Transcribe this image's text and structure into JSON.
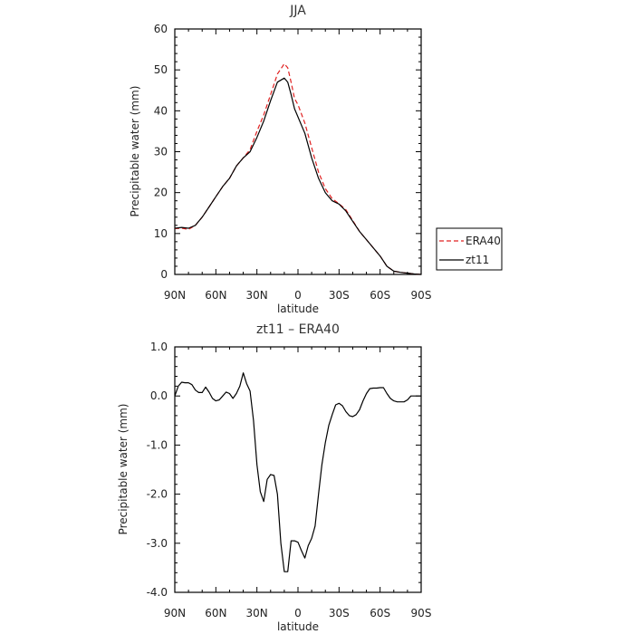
{
  "colors": {
    "era40": "#e02020",
    "zt11": "#000000",
    "axis": "#000000"
  },
  "chart_data": [
    {
      "type": "line",
      "title": "JJA",
      "xlabel": "latitude",
      "ylabel": "Precipitable water (mm)",
      "xlim": [
        90,
        -90
      ],
      "ylim": [
        0,
        60
      ],
      "xticks": [
        90,
        60,
        30,
        0,
        -30,
        -60,
        -90
      ],
      "xtick_labels": [
        "90N",
        "60N",
        "30N",
        "0",
        "30S",
        "60S",
        "90S"
      ],
      "yticks": [
        0,
        10,
        20,
        30,
        40,
        50,
        60
      ],
      "ytick_labels": [
        "0",
        "10",
        "20",
        "30",
        "40",
        "50",
        "60"
      ],
      "legend": {
        "placement": "right",
        "entries": [
          "ERA40",
          "zt11"
        ]
      },
      "series": [
        {
          "name": "ERA40",
          "style": "dashed",
          "x": [
            90,
            85,
            80,
            75,
            70,
            65,
            60,
            55,
            50,
            45,
            40,
            35,
            30,
            25,
            20,
            15,
            10,
            7.5,
            5,
            2.5,
            0,
            -5,
            -10,
            -15,
            -20,
            -25,
            -30,
            -35,
            -40,
            -45,
            -50,
            -55,
            -60,
            -65,
            -70,
            -75,
            -80,
            -85,
            -90
          ],
          "y": [
            11.2,
            11.3,
            11.0,
            12.0,
            14.0,
            16.5,
            19.0,
            21.5,
            23.5,
            26.5,
            28.5,
            30.5,
            35.0,
            39.0,
            44.0,
            49.0,
            51.5,
            50.5,
            47.0,
            43.0,
            41.5,
            37.0,
            31.0,
            25.0,
            21.0,
            18.5,
            17.3,
            15.8,
            13.2,
            10.5,
            8.5,
            6.5,
            4.5,
            2.0,
            0.8,
            0.5,
            0.3,
            0.1,
            0.0
          ]
        },
        {
          "name": "zt11",
          "style": "solid",
          "x": [
            90,
            85,
            80,
            75,
            70,
            65,
            60,
            55,
            50,
            45,
            40,
            35,
            30,
            25,
            20,
            15,
            10,
            7.5,
            5,
            2.5,
            0,
            -5,
            -10,
            -15,
            -20,
            -25,
            -30,
            -35,
            -40,
            -45,
            -50,
            -55,
            -60,
            -65,
            -70,
            -75,
            -80,
            -85,
            -90
          ],
          "y": [
            11.3,
            11.5,
            11.3,
            12.0,
            14.0,
            16.5,
            19.0,
            21.5,
            23.5,
            26.5,
            28.5,
            30.0,
            33.5,
            37.5,
            42.5,
            47.0,
            48.0,
            47.0,
            44.0,
            40.5,
            38.5,
            34.5,
            28.5,
            23.5,
            20.0,
            18.0,
            17.2,
            15.5,
            13.0,
            10.5,
            8.5,
            6.5,
            4.5,
            2.0,
            0.8,
            0.5,
            0.3,
            0.1,
            0.0
          ]
        }
      ]
    },
    {
      "type": "line",
      "title": "zt11 – ERA40",
      "xlabel": "latitude",
      "ylabel": "Precipitable water (mm)",
      "xlim": [
        90,
        -90
      ],
      "ylim": [
        -4,
        1
      ],
      "xticks": [
        90,
        60,
        30,
        0,
        -30,
        -60,
        -90
      ],
      "xtick_labels": [
        "90N",
        "60N",
        "30N",
        "0",
        "30S",
        "60S",
        "90S"
      ],
      "yticks": [
        1,
        0,
        -1,
        -2,
        -3,
        -4
      ],
      "ytick_labels": [
        "1.0",
        "0.0",
        "-1.0",
        "-2.0",
        "-3.0",
        "-4.0"
      ],
      "series": [
        {
          "name": "zt11 – ERA40",
          "style": "solid",
          "x": [
            90,
            87.5,
            85,
            82.5,
            80,
            77.5,
            75,
            72.5,
            70,
            67.5,
            65,
            62.5,
            60,
            57.5,
            55,
            52.5,
            50,
            47.5,
            45,
            42.5,
            40,
            37.5,
            35,
            32.5,
            30,
            27.5,
            25,
            22.5,
            20,
            17.5,
            15,
            12.5,
            10,
            7.5,
            5,
            2.5,
            0,
            -2.5,
            -5,
            -7.5,
            -10,
            -12.5,
            -15,
            -17.5,
            -20,
            -22.5,
            -25,
            -27.5,
            -30,
            -32.5,
            -35,
            -37.5,
            -40,
            -42.5,
            -45,
            -47.5,
            -50,
            -52.5,
            -55,
            -57.5,
            -60,
            -62.5,
            -65,
            -67.5,
            -70,
            -72.5,
            -75,
            -77.5,
            -80,
            -82.5,
            -85,
            -87.5,
            -90
          ],
          "y": [
            0.0,
            0.2,
            0.28,
            0.27,
            0.27,
            0.23,
            0.12,
            0.07,
            0.07,
            0.18,
            0.08,
            -0.05,
            -0.1,
            -0.08,
            0.0,
            0.08,
            0.05,
            -0.05,
            0.05,
            0.2,
            0.47,
            0.25,
            0.1,
            -0.5,
            -1.4,
            -1.95,
            -2.15,
            -1.7,
            -1.6,
            -1.62,
            -2.0,
            -3.0,
            -3.58,
            -3.58,
            -2.95,
            -2.95,
            -2.98,
            -3.15,
            -3.3,
            -3.05,
            -2.9,
            -2.65,
            -2.0,
            -1.4,
            -0.95,
            -0.6,
            -0.38,
            -0.18,
            -0.15,
            -0.2,
            -0.32,
            -0.4,
            -0.42,
            -0.38,
            -0.28,
            -0.1,
            0.05,
            0.15,
            0.16,
            0.16,
            0.17,
            0.17,
            0.05,
            -0.05,
            -0.1,
            -0.12,
            -0.12,
            -0.12,
            -0.08,
            0.0,
            0.0,
            0.0,
            0.0
          ]
        }
      ]
    }
  ]
}
